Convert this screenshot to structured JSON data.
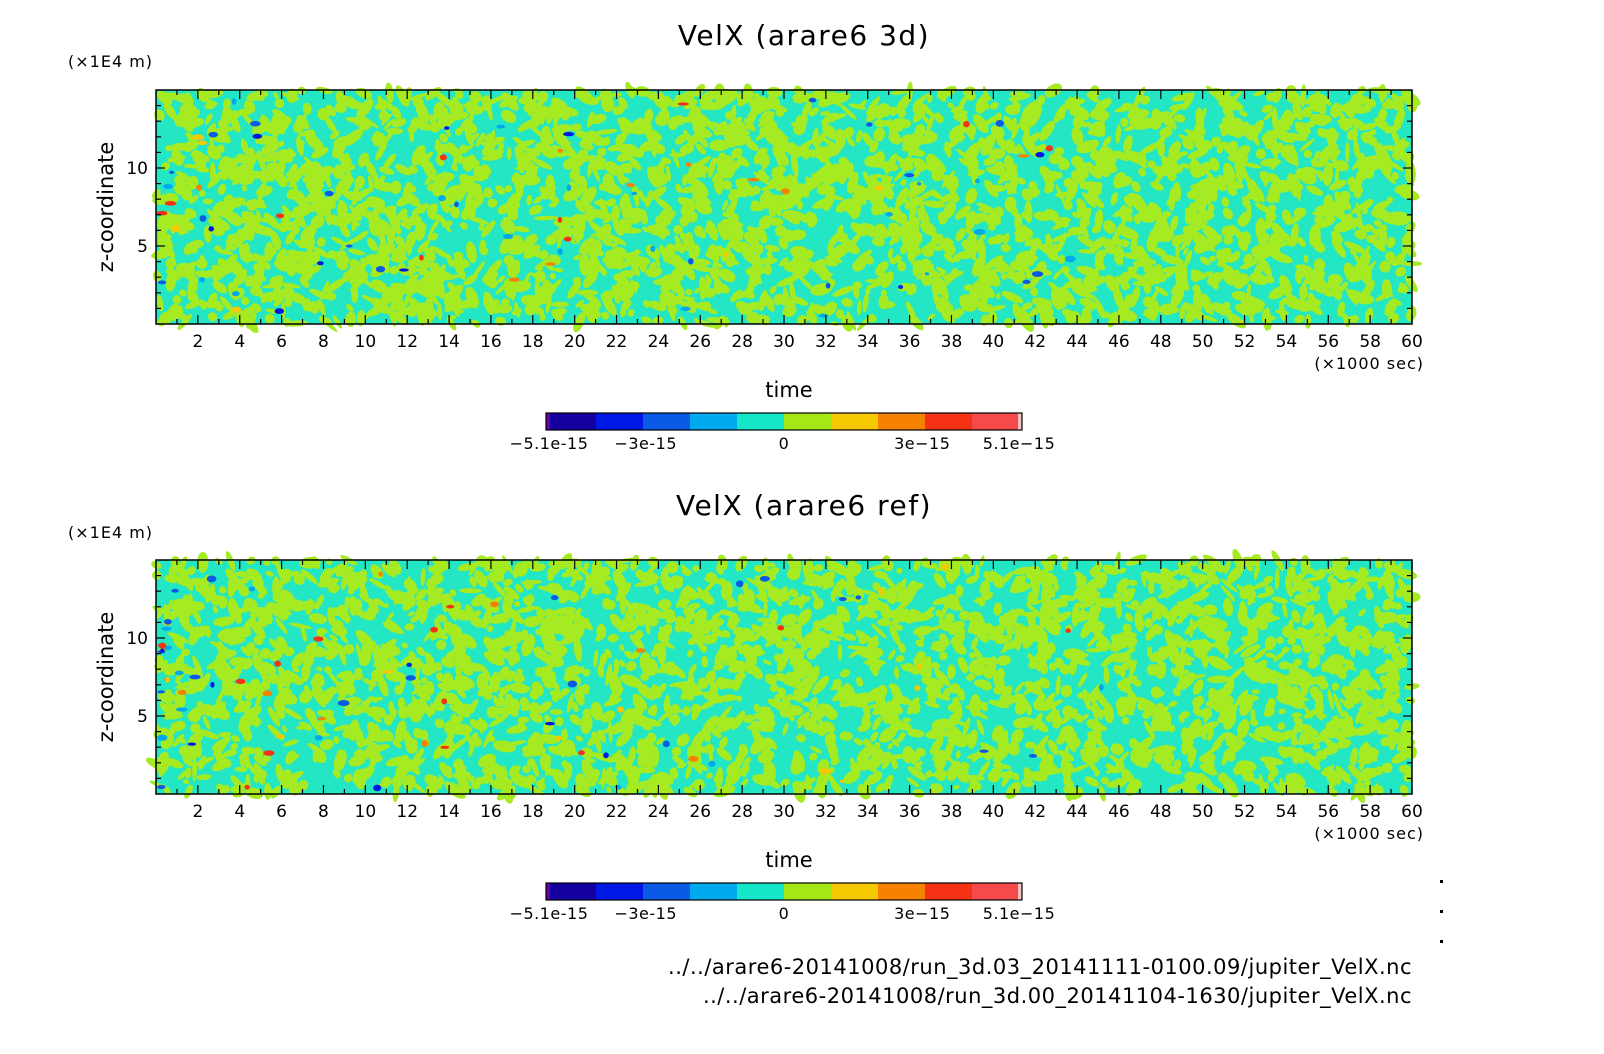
{
  "colors": {
    "background": "#ffffff",
    "field_dominant_1": "#22e6c4",
    "field_dominant_2": "#a6ea22",
    "colorbar": [
      "#1400a0",
      "#0018e6",
      "#0a5ae6",
      "#00a8ee",
      "#14e6c8",
      "#a6e614",
      "#f6c800",
      "#f68200",
      "#f63214",
      "#f64a4a"
    ]
  },
  "chart_data": [
    {
      "type": "heatmap",
      "title": "VelX (arare6 3d)",
      "xlabel": "time",
      "x_unit": "(×1000 sec)",
      "ylabel": "z-coordinate",
      "y_unit": "(×1E4 m)",
      "xlim": [
        0,
        60
      ],
      "ylim": [
        0,
        15
      ],
      "x_ticks": [
        "2",
        "4",
        "6",
        "8",
        "10",
        "12",
        "14",
        "16",
        "18",
        "20",
        "22",
        "24",
        "26",
        "28",
        "30",
        "32",
        "34",
        "36",
        "38",
        "40",
        "42",
        "44",
        "46",
        "48",
        "50",
        "52",
        "54",
        "56",
        "58",
        "60"
      ],
      "y_ticks": [
        "5",
        "10"
      ],
      "colorbar": {
        "range": [
          -5.1e-15,
          5.1e-15
        ],
        "levels": 10,
        "tick_labels": [
          "-5.1e-15",
          "-3e-15",
          "0",
          "3e-15",
          "5.1e-15"
        ]
      },
      "seed": 7
    },
    {
      "type": "heatmap",
      "title": "VelX (arare6 ref)",
      "xlabel": "time",
      "x_unit": "(×1000 sec)",
      "ylabel": "z-coordinate",
      "y_unit": "(×1E4 m)",
      "xlim": [
        0,
        60
      ],
      "ylim": [
        0,
        15
      ],
      "x_ticks": [
        "2",
        "4",
        "6",
        "8",
        "10",
        "12",
        "14",
        "16",
        "18",
        "20",
        "22",
        "24",
        "26",
        "28",
        "30",
        "32",
        "34",
        "36",
        "38",
        "40",
        "42",
        "44",
        "46",
        "48",
        "50",
        "52",
        "54",
        "56",
        "58",
        "60"
      ],
      "y_ticks": [
        "5",
        "10"
      ],
      "colorbar": {
        "range": [
          -5.1e-15,
          5.1e-15
        ],
        "levels": 10,
        "tick_labels": [
          "-5.1e-15",
          "-3e-15",
          "0",
          "3e-15",
          "5.1e-15"
        ]
      },
      "seed": 13
    }
  ],
  "footer": {
    "path_1": "../../arare6-20141008/run_3d.03_20141111-0100.09/jupiter_VelX.nc",
    "path_2": "../../arare6-20141008/run_3d.00_20141104-1630/jupiter_VelX.nc"
  }
}
